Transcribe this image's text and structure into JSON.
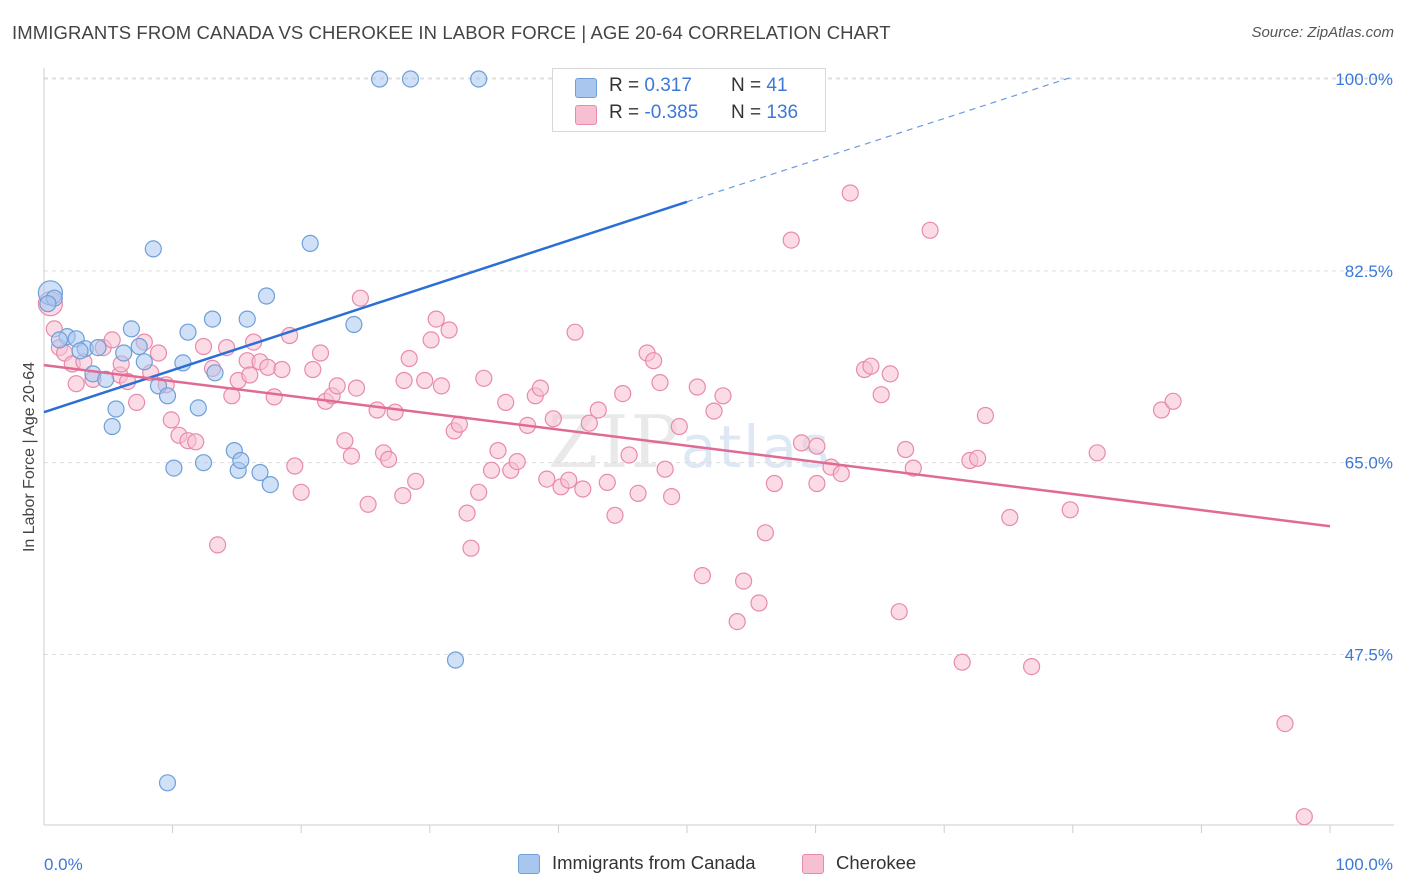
{
  "title": "IMMIGRANTS FROM CANADA VS CHEROKEE IN LABOR FORCE | AGE 20-64 CORRELATION CHART",
  "source": "Source: ZipAtlas.com",
  "watermark": {
    "zip": "ZIP",
    "atlas": "atlas"
  },
  "legend": {
    "series1": {
      "r_label": "R =",
      "r_value": "0.317",
      "n_label": "N =",
      "n_value": "41"
    },
    "series2": {
      "r_label": "R =",
      "r_value": "-0.385",
      "n_label": "N =",
      "n_value": "136"
    }
  },
  "bottom_legend": {
    "series1": "Immigrants from Canada",
    "series2": "Cherokee"
  },
  "colors": {
    "blue_fill": "#a9c7ee",
    "blue_stroke": "#6f9fd8",
    "blue_line": "#2b6fd6",
    "pink_fill": "#f7bfd2",
    "pink_stroke": "#e98aaa",
    "pink_line": "#e06a93",
    "axis_text": "#3b78d8",
    "grid": "#dddddd"
  },
  "chart_data": {
    "type": "scatter",
    "title": "IMMIGRANTS FROM CANADA VS CHEROKEE IN LABOR FORCE | AGE 20-64 CORRELATION CHART",
    "xlabel": "",
    "ylabel": "In Labor Force | Age 20-64",
    "xlim": [
      0,
      100
    ],
    "ylim": [
      33.5,
      100
    ],
    "x_ticks": [
      "0.0%",
      "100.0%"
    ],
    "y_ticks": [
      {
        "value": 100,
        "label": "100.0%"
      },
      {
        "value": 82.5,
        "label": "82.5%"
      },
      {
        "value": 65,
        "label": "65.0%"
      },
      {
        "value": 47.5,
        "label": "47.5%"
      }
    ],
    "grid": "horizontal dashed",
    "series": [
      {
        "name": "Immigrants from Canada",
        "color": "#6f9fd8",
        "trend": {
          "x": [
            0,
            50,
            80
          ],
          "y": [
            69.6,
            88.8,
            100.2
          ],
          "dashed_from_x": 50
        },
        "points": [
          [
            0.5,
            80.5
          ],
          [
            0.8,
            80
          ],
          [
            1.8,
            76.5
          ],
          [
            2.5,
            76.3
          ],
          [
            3.2,
            75.4
          ],
          [
            3.8,
            73.1
          ],
          [
            4.2,
            75.5
          ],
          [
            5.3,
            68.3
          ],
          [
            5.6,
            69.9
          ],
          [
            6.8,
            77.2
          ],
          [
            7.4,
            75.6
          ],
          [
            7.8,
            74.2
          ],
          [
            8.5,
            84.5
          ],
          [
            8.9,
            72.0
          ],
          [
            9.6,
            71.1
          ],
          [
            10.1,
            64.5
          ],
          [
            10.8,
            74.1
          ],
          [
            11.2,
            76.9
          ],
          [
            12.0,
            70.0
          ],
          [
            12.4,
            65.0
          ],
          [
            13.1,
            78.1
          ],
          [
            13.3,
            73.2
          ],
          [
            14.8,
            66.1
          ],
          [
            15.1,
            64.3
          ],
          [
            15.3,
            65.2
          ],
          [
            15.8,
            78.1
          ],
          [
            16.8,
            64.1
          ],
          [
            17.3,
            80.2
          ],
          [
            17.6,
            63.0
          ],
          [
            20.7,
            85.0
          ],
          [
            24.1,
            77.6
          ],
          [
            26.1,
            100
          ],
          [
            28.5,
            100
          ],
          [
            33.8,
            100
          ],
          [
            32.0,
            47.0
          ],
          [
            9.6,
            35.8
          ],
          [
            0.3,
            79.5
          ],
          [
            2.8,
            75.2
          ],
          [
            1.2,
            76.2
          ],
          [
            4.8,
            72.6
          ],
          [
            6.2,
            75.0
          ]
        ]
      },
      {
        "name": "Cherokee",
        "color": "#e98aaa",
        "trend": {
          "x": [
            0,
            100
          ],
          "y": [
            73.9,
            59.2
          ]
        },
        "points": [
          [
            0.5,
            79.5
          ],
          [
            0.8,
            77.2
          ],
          [
            1.2,
            75.5
          ],
          [
            1.6,
            75.0
          ],
          [
            2.2,
            74.0
          ],
          [
            2.5,
            72.2
          ],
          [
            3.1,
            74.2
          ],
          [
            3.8,
            72.6
          ],
          [
            4.6,
            75.5
          ],
          [
            5.3,
            76.2
          ],
          [
            5.9,
            73.0
          ],
          [
            6.5,
            72.4
          ],
          [
            7.2,
            70.5
          ],
          [
            7.8,
            76.0
          ],
          [
            8.3,
            73.2
          ],
          [
            8.9,
            75.0
          ],
          [
            9.5,
            72.1
          ],
          [
            9.9,
            68.9
          ],
          [
            10.5,
            67.5
          ],
          [
            11.2,
            67.0
          ],
          [
            11.8,
            66.9
          ],
          [
            12.4,
            75.6
          ],
          [
            13.1,
            73.6
          ],
          [
            13.5,
            57.5
          ],
          [
            14.2,
            75.5
          ],
          [
            14.6,
            71.1
          ],
          [
            15.1,
            72.5
          ],
          [
            15.8,
            74.3
          ],
          [
            16.3,
            76.0
          ],
          [
            16.8,
            74.2
          ],
          [
            17.4,
            73.7
          ],
          [
            17.9,
            71.0
          ],
          [
            18.5,
            73.5
          ],
          [
            19.1,
            76.6
          ],
          [
            19.5,
            64.7
          ],
          [
            20.0,
            62.3
          ],
          [
            20.9,
            73.5
          ],
          [
            21.5,
            75.0
          ],
          [
            21.9,
            70.6
          ],
          [
            22.4,
            71.1
          ],
          [
            22.8,
            72.0
          ],
          [
            23.4,
            67.0
          ],
          [
            23.9,
            65.6
          ],
          [
            24.3,
            71.8
          ],
          [
            24.6,
            80.0
          ],
          [
            25.2,
            61.2
          ],
          [
            25.9,
            69.8
          ],
          [
            26.4,
            65.9
          ],
          [
            26.8,
            65.3
          ],
          [
            27.3,
            69.6
          ],
          [
            27.9,
            62.0
          ],
          [
            28.4,
            74.5
          ],
          [
            28.9,
            63.3
          ],
          [
            29.6,
            72.5
          ],
          [
            30.1,
            76.2
          ],
          [
            30.5,
            78.1
          ],
          [
            30.9,
            72.0
          ],
          [
            31.5,
            77.1
          ],
          [
            31.9,
            67.9
          ],
          [
            32.3,
            68.5
          ],
          [
            32.9,
            60.4
          ],
          [
            33.2,
            57.2
          ],
          [
            33.8,
            62.3
          ],
          [
            34.2,
            72.7
          ],
          [
            34.8,
            64.3
          ],
          [
            35.3,
            66.1
          ],
          [
            35.9,
            70.5
          ],
          [
            36.3,
            64.3
          ],
          [
            36.8,
            65.1
          ],
          [
            37.6,
            68.4
          ],
          [
            38.2,
            71.1
          ],
          [
            38.6,
            71.8
          ],
          [
            39.1,
            63.5
          ],
          [
            39.6,
            69.0
          ],
          [
            40.2,
            62.8
          ],
          [
            40.8,
            63.4
          ],
          [
            41.3,
            76.9
          ],
          [
            41.9,
            62.6
          ],
          [
            42.4,
            68.6
          ],
          [
            43.1,
            69.8
          ],
          [
            43.8,
            63.2
          ],
          [
            44.4,
            60.2
          ],
          [
            45.0,
            71.3
          ],
          [
            45.5,
            65.7
          ],
          [
            46.2,
            62.2
          ],
          [
            46.9,
            75.0
          ],
          [
            47.4,
            74.3
          ],
          [
            47.9,
            72.3
          ],
          [
            48.3,
            64.4
          ],
          [
            48.8,
            61.9
          ],
          [
            49.4,
            68.3
          ],
          [
            49.9,
            100
          ],
          [
            50.8,
            71.9
          ],
          [
            51.2,
            54.7
          ],
          [
            52.1,
            69.7
          ],
          [
            52.8,
            71.1
          ],
          [
            53.9,
            50.5
          ],
          [
            54.4,
            54.2
          ],
          [
            55.6,
            52.2
          ],
          [
            56.1,
            58.6
          ],
          [
            56.8,
            63.1
          ],
          [
            58.1,
            85.3
          ],
          [
            58.9,
            66.8
          ],
          [
            60.1,
            63.1
          ],
          [
            61.2,
            64.6
          ],
          [
            62.7,
            89.6
          ],
          [
            63.8,
            73.5
          ],
          [
            64.3,
            73.8
          ],
          [
            65.1,
            71.2
          ],
          [
            65.8,
            73.1
          ],
          [
            66.5,
            51.4
          ],
          [
            67.0,
            66.2
          ],
          [
            67.6,
            64.5
          ],
          [
            68.9,
            86.2
          ],
          [
            71.4,
            46.8
          ],
          [
            72.0,
            65.2
          ],
          [
            72.6,
            65.4
          ],
          [
            73.2,
            69.3
          ],
          [
            75.1,
            60.0
          ],
          [
            76.8,
            46.4
          ],
          [
            79.8,
            60.7
          ],
          [
            81.9,
            65.9
          ],
          [
            86.9,
            69.8
          ],
          [
            87.8,
            70.6
          ],
          [
            96.5,
            41.2
          ],
          [
            98.0,
            32.7
          ],
          [
            60.1,
            66.5
          ],
          [
            62.0,
            64.0
          ],
          [
            28.0,
            72.5
          ],
          [
            16.0,
            73.0
          ],
          [
            6.0,
            74.0
          ]
        ]
      }
    ]
  }
}
